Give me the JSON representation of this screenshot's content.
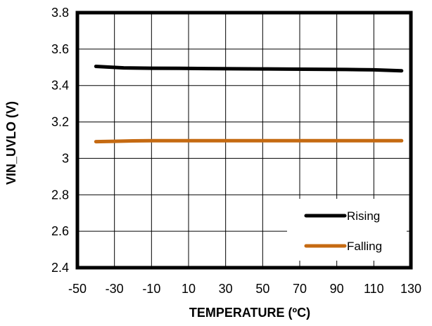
{
  "chart_data": {
    "type": "line",
    "title": "",
    "xlabel": "TEMPERATURE  (ºC)",
    "ylabel": "VIN_UVLO (V)",
    "xlim": [
      -50,
      130
    ],
    "ylim": [
      2.4,
      3.8
    ],
    "x_ticks": [
      "-50",
      "-30",
      "-10",
      "10",
      "30",
      "50",
      "70",
      "90",
      "110",
      "130"
    ],
    "y_ticks": [
      "2.4",
      "2.6",
      "2.8",
      "3",
      "3.2",
      "3.4",
      "3.6",
      "3.8"
    ],
    "grid": true,
    "legend_position": "bottom-right",
    "series": [
      {
        "name": "Rising",
        "color": "#000000",
        "x": [
          -40,
          -25,
          -10,
          5,
          20,
          35,
          50,
          65,
          80,
          95,
          110,
          125
        ],
        "y": [
          3.505,
          3.497,
          3.495,
          3.494,
          3.493,
          3.492,
          3.491,
          3.49,
          3.489,
          3.488,
          3.486,
          3.481
        ]
      },
      {
        "name": "Falling",
        "color": "#C56A12",
        "x": [
          -40,
          -30,
          -20,
          -10,
          5,
          20,
          35,
          50,
          65,
          80,
          95,
          110,
          125
        ],
        "y": [
          3.092,
          3.094,
          3.096,
          3.097,
          3.097,
          3.097,
          3.097,
          3.097,
          3.097,
          3.097,
          3.097,
          3.097,
          3.097
        ]
      }
    ]
  }
}
